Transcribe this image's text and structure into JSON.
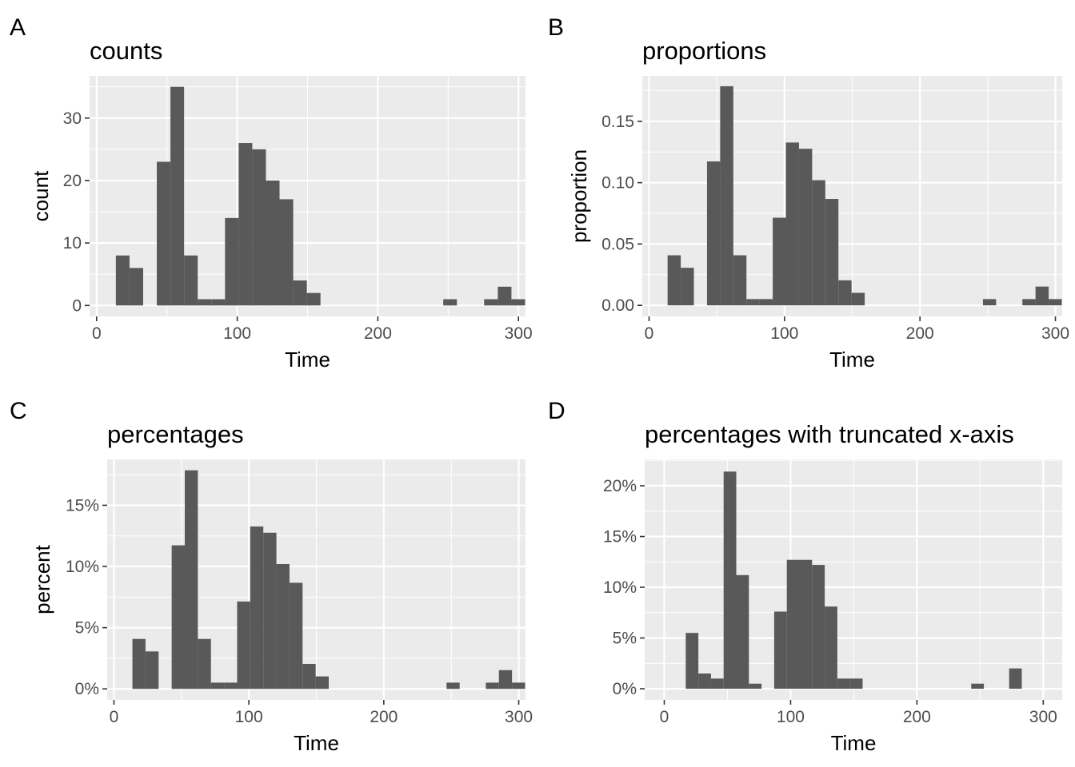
{
  "colors": {
    "bar": "#595959",
    "panel_bg": "#ebebeb",
    "grid": "#ffffff",
    "tick": "#333333"
  },
  "chart_data": [
    {
      "type": "bar",
      "tag": "A",
      "title": "counts",
      "xlabel": "Time",
      "ylabel": "count",
      "xlim": [
        -5,
        305
      ],
      "ylim": [
        -1.75,
        36.75
      ],
      "xticks": [
        0,
        100,
        200,
        300
      ],
      "xtick_labels": [
        "0",
        "100",
        "200",
        "300"
      ],
      "yticks": [
        0,
        10,
        20,
        30
      ],
      "ytick_labels": [
        "0",
        "10",
        "20",
        "30"
      ],
      "bin_width": 9.7,
      "bins": [
        {
          "x0": 13.7,
          "value": 8
        },
        {
          "x0": 23.4,
          "value": 6
        },
        {
          "x0": 42.8,
          "value": 23
        },
        {
          "x0": 52.5,
          "value": 35
        },
        {
          "x0": 62.2,
          "value": 8
        },
        {
          "x0": 71.9,
          "value": 1
        },
        {
          "x0": 81.6,
          "value": 1
        },
        {
          "x0": 91.3,
          "value": 14
        },
        {
          "x0": 101.0,
          "value": 26
        },
        {
          "x0": 110.7,
          "value": 25
        },
        {
          "x0": 120.4,
          "value": 20
        },
        {
          "x0": 130.1,
          "value": 17
        },
        {
          "x0": 139.8,
          "value": 4
        },
        {
          "x0": 149.5,
          "value": 2
        },
        {
          "x0": 246.5,
          "value": 1
        },
        {
          "x0": 275.6,
          "value": 1
        },
        {
          "x0": 285.3,
          "value": 3
        },
        {
          "x0": 295.0,
          "value": 1
        }
      ]
    },
    {
      "type": "bar",
      "tag": "B",
      "title": "proportions",
      "xlabel": "Time",
      "ylabel": "proportion",
      "xlim": [
        -5,
        305
      ],
      "ylim": [
        -0.009,
        0.187
      ],
      "xticks": [
        0,
        100,
        200,
        300
      ],
      "xtick_labels": [
        "0",
        "100",
        "200",
        "300"
      ],
      "yticks": [
        0,
        0.05,
        0.1,
        0.15
      ],
      "ytick_labels": [
        "0.00",
        "0.05",
        "0.10",
        "0.15"
      ],
      "bin_width": 9.7,
      "bins": [
        {
          "x0": 13.7,
          "value": 0.0408
        },
        {
          "x0": 23.4,
          "value": 0.0306
        },
        {
          "x0": 42.8,
          "value": 0.1173
        },
        {
          "x0": 52.5,
          "value": 0.1786
        },
        {
          "x0": 62.2,
          "value": 0.0408
        },
        {
          "x0": 71.9,
          "value": 0.0051
        },
        {
          "x0": 81.6,
          "value": 0.0051
        },
        {
          "x0": 91.3,
          "value": 0.0714
        },
        {
          "x0": 101.0,
          "value": 0.1327
        },
        {
          "x0": 110.7,
          "value": 0.1276
        },
        {
          "x0": 120.4,
          "value": 0.102
        },
        {
          "x0": 130.1,
          "value": 0.0867
        },
        {
          "x0": 139.8,
          "value": 0.0204
        },
        {
          "x0": 149.5,
          "value": 0.0102
        },
        {
          "x0": 246.5,
          "value": 0.0051
        },
        {
          "x0": 275.6,
          "value": 0.0051
        },
        {
          "x0": 285.3,
          "value": 0.0153
        },
        {
          "x0": 295.0,
          "value": 0.0051
        }
      ]
    },
    {
      "type": "bar",
      "tag": "C",
      "title": "percentages",
      "xlabel": "Time",
      "ylabel": "percent",
      "xlim": [
        -5,
        305
      ],
      "ylim": [
        -0.9,
        18.75
      ],
      "xticks": [
        0,
        100,
        200,
        300
      ],
      "xtick_labels": [
        "0",
        "100",
        "200",
        "300"
      ],
      "yticks": [
        0,
        5,
        10,
        15
      ],
      "ytick_labels": [
        "0%",
        "5%",
        "10%",
        "15%"
      ],
      "bin_width": 9.7,
      "bins": [
        {
          "x0": 13.7,
          "value": 4.08
        },
        {
          "x0": 23.4,
          "value": 3.06
        },
        {
          "x0": 42.8,
          "value": 11.73
        },
        {
          "x0": 52.5,
          "value": 17.86
        },
        {
          "x0": 62.2,
          "value": 4.08
        },
        {
          "x0": 71.9,
          "value": 0.51
        },
        {
          "x0": 81.6,
          "value": 0.51
        },
        {
          "x0": 91.3,
          "value": 7.14
        },
        {
          "x0": 101.0,
          "value": 13.27
        },
        {
          "x0": 110.7,
          "value": 12.76
        },
        {
          "x0": 120.4,
          "value": 10.2
        },
        {
          "x0": 130.1,
          "value": 8.67
        },
        {
          "x0": 139.8,
          "value": 2.04
        },
        {
          "x0": 149.5,
          "value": 1.02
        },
        {
          "x0": 246.5,
          "value": 0.51
        },
        {
          "x0": 275.6,
          "value": 0.51
        },
        {
          "x0": 285.3,
          "value": 1.53
        },
        {
          "x0": 295.0,
          "value": 0.51
        }
      ]
    },
    {
      "type": "bar",
      "tag": "D",
      "title": "percentages with truncated x-axis",
      "xlabel": "Time",
      "ylabel": "",
      "xlim": [
        -15.5,
        315
      ],
      "ylim": [
        -1.1,
        22.6
      ],
      "xticks": [
        0,
        100,
        200,
        300
      ],
      "xtick_labels": [
        "0",
        "100",
        "200",
        "300"
      ],
      "yticks": [
        0,
        5,
        10,
        15,
        20
      ],
      "ytick_labels": [
        "0%",
        "5%",
        "10%",
        "15%",
        "20%"
      ],
      "bin_width": 10,
      "bins": [
        {
          "x0": 17,
          "value": 5.5
        },
        {
          "x0": 27,
          "value": 1.5
        },
        {
          "x0": 37,
          "value": 1.0
        },
        {
          "x0": 47,
          "value": 21.4
        },
        {
          "x0": 57,
          "value": 11.2
        },
        {
          "x0": 67,
          "value": 0.5
        },
        {
          "x0": 87,
          "value": 7.6
        },
        {
          "x0": 97,
          "value": 12.7
        },
        {
          "x0": 107,
          "value": 12.7
        },
        {
          "x0": 117,
          "value": 12.2
        },
        {
          "x0": 127,
          "value": 8.1
        },
        {
          "x0": 137,
          "value": 1.0
        },
        {
          "x0": 147,
          "value": 1.0
        },
        {
          "x0": 243,
          "value": 0.5
        },
        {
          "x0": 273,
          "value": 2.0
        }
      ]
    }
  ]
}
